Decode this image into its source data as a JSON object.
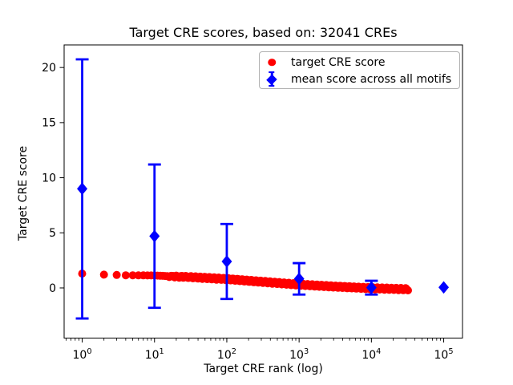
{
  "figure": {
    "title": "Target CRE scores, based on: 32041 CREs",
    "xlabel": "Target CRE rank (log)",
    "ylabel": "Target CRE score"
  },
  "legend": {
    "position": "upper right",
    "entries": [
      {
        "label": "target CRE score",
        "marker": "red-circle",
        "color": "#ff0000"
      },
      {
        "label": "mean score across all motifs",
        "marker": "blue-diamond-errorbar",
        "color": "#0000ff"
      }
    ]
  },
  "chart_data": {
    "type": "scatter",
    "title": "Target CRE scores, based on: 32041 CREs",
    "xlabel": "Target CRE rank (log)",
    "ylabel": "Target CRE score",
    "x_scale": "log",
    "grid": false,
    "n_cres": 32041,
    "x_tick_exponents": [
      0,
      1,
      2,
      3,
      4,
      5
    ],
    "y_ticks": [
      0,
      5,
      10,
      15,
      20
    ],
    "xlim_log10": [
      -0.25,
      5.26
    ],
    "ylim": [
      -4.55,
      22.05
    ],
    "series": [
      {
        "name": "target CRE score",
        "kind": "dense-dots",
        "color": "#ff0000",
        "marker": "circle",
        "marker_radius_px": 5,
        "n_points": 32041,
        "trend_log10_rank": [
          0,
          0.301,
          0.602,
          1.0,
          1.5,
          2.0,
          2.5,
          3.0,
          3.5,
          4.0,
          4.506
        ],
        "trend_value": [
          1.3,
          1.21,
          1.15,
          1.13,
          0.98,
          0.8,
          0.55,
          0.3,
          0.12,
          -0.03,
          -0.12
        ]
      },
      {
        "name": "mean score across all motifs",
        "kind": "errorbar",
        "color": "#0000ff",
        "marker": "diamond",
        "x": [
          1,
          10,
          100,
          1000,
          10000,
          100000
        ],
        "mean": [
          9.0,
          4.7,
          2.4,
          0.83,
          0.03,
          0.05
        ],
        "err_low": [
          -2.77,
          -1.8,
          -1.0,
          -0.6,
          -0.6,
          0.05
        ],
        "err_high": [
          20.74,
          11.2,
          5.8,
          2.25,
          0.65,
          0.05
        ]
      }
    ],
    "legend_position": "upper right"
  }
}
